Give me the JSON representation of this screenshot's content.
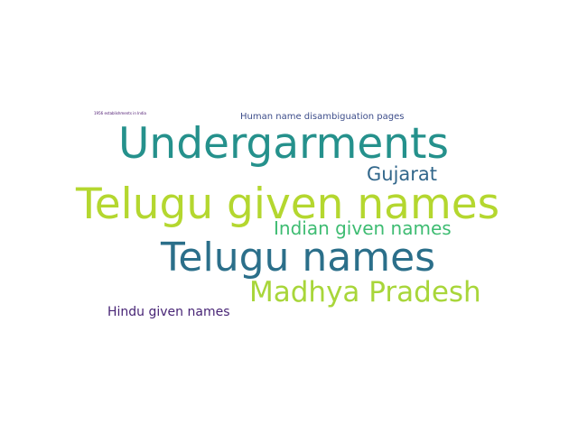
{
  "background": "#ffffff",
  "words": [
    {
      "key": "undergarments",
      "text": "Undergarments",
      "color": "#25918c"
    },
    {
      "key": "telugu_given",
      "text": "Telugu given names",
      "color": "#b4d72f"
    },
    {
      "key": "telugu_names",
      "text": "Telugu names",
      "color": "#2b6f8a"
    },
    {
      "key": "madhya",
      "text": "Madhya Pradesh",
      "color": "#a8d63a"
    },
    {
      "key": "indian",
      "text": "Indian given names",
      "color": "#3ebc72"
    },
    {
      "key": "gujarat",
      "text": "Gujarat",
      "color": "#32678b"
    },
    {
      "key": "hindu",
      "text": "Hindu given names",
      "color": "#482576"
    },
    {
      "key": "human",
      "text": "Human name disambiguation pages",
      "color": "#3d4d8a"
    },
    {
      "key": "estab",
      "text": "1956 establishments in India",
      "color": "#46106b"
    }
  ]
}
